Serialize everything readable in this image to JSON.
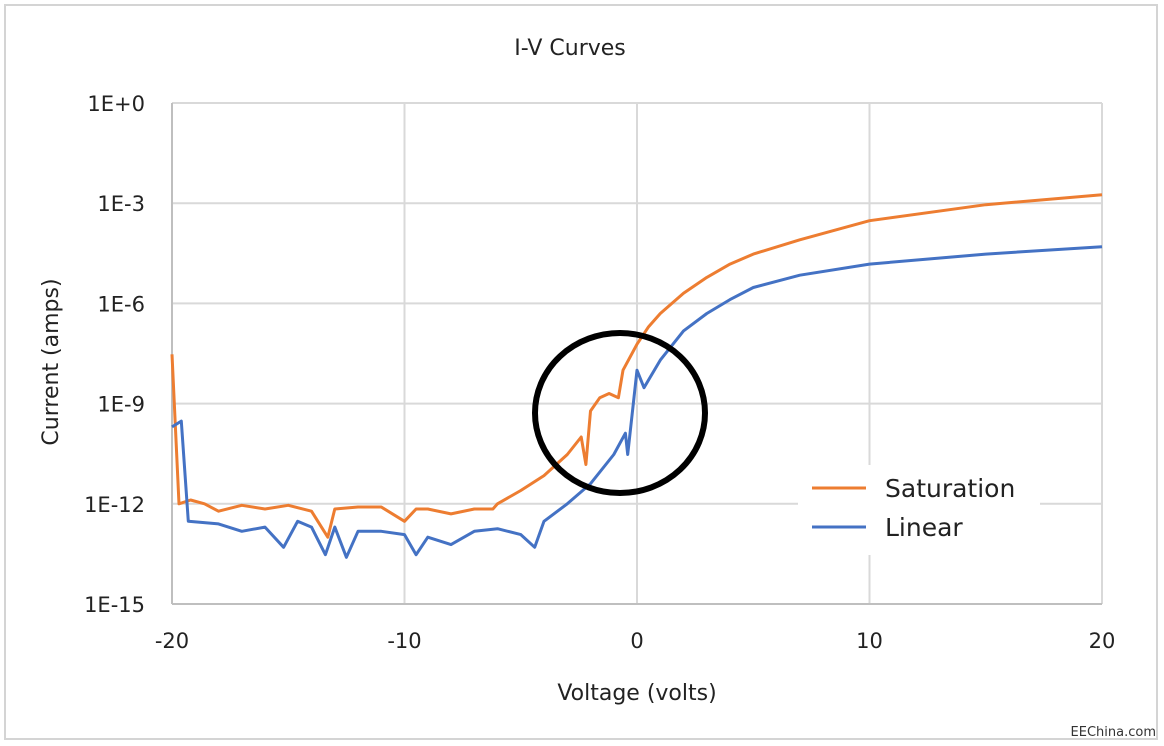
{
  "chart_data": {
    "type": "line",
    "title": "I-V Curves",
    "xlabel": "Voltage (volts)",
    "ylabel": "Current (amps)",
    "xlim": [
      -20,
      20
    ],
    "ylim": [
      1e-15,
      1
    ],
    "yscale": "log",
    "grid": true,
    "legend_position": "lower-right",
    "x_ticks": [
      "-20",
      "-10",
      "0",
      "10",
      "20"
    ],
    "y_ticks": [
      "1E+0",
      "1E-3",
      "1E-6",
      "1E-9",
      "1E-12",
      "1E-15"
    ],
    "annotation": "black circle around the turn-on region near 0 V",
    "series": [
      {
        "name": "Saturation",
        "color": "#ED7D31",
        "points": [
          [
            -20,
            3e-08
          ],
          [
            -19.7,
            1e-12
          ],
          [
            -19.2,
            1.3e-12
          ],
          [
            -18.6,
            1e-12
          ],
          [
            -18,
            6e-13
          ],
          [
            -17,
            9e-13
          ],
          [
            -16,
            7e-13
          ],
          [
            -15,
            9e-13
          ],
          [
            -14,
            6e-13
          ],
          [
            -13.3,
            1e-13
          ],
          [
            -13,
            7e-13
          ],
          [
            -12,
            8e-13
          ],
          [
            -11,
            8e-13
          ],
          [
            -10,
            3e-13
          ],
          [
            -9.5,
            7e-13
          ],
          [
            -9,
            7e-13
          ],
          [
            -8,
            5e-13
          ],
          [
            -7,
            7e-13
          ],
          [
            -6.2,
            7e-13
          ],
          [
            -6,
            1e-12
          ],
          [
            -5,
            2.5e-12
          ],
          [
            -4,
            7e-12
          ],
          [
            -3,
            3e-11
          ],
          [
            -2.4,
            1e-10
          ],
          [
            -2.2,
            1.5e-11
          ],
          [
            -2,
            6e-10
          ],
          [
            -1.6,
            1.5e-09
          ],
          [
            -1.2,
            2e-09
          ],
          [
            -0.8,
            1.5e-09
          ],
          [
            -0.6,
            1e-08
          ],
          [
            0,
            6e-08
          ],
          [
            0.5,
            2e-07
          ],
          [
            1,
            5e-07
          ],
          [
            2,
            2e-06
          ],
          [
            3,
            6e-06
          ],
          [
            4,
            1.5e-05
          ],
          [
            5,
            3e-05
          ],
          [
            7,
            8e-05
          ],
          [
            10,
            0.0003
          ],
          [
            15,
            0.0009
          ],
          [
            20,
            0.0018
          ]
        ]
      },
      {
        "name": "Linear",
        "color": "#4472C4",
        "points": [
          [
            -20,
            2e-10
          ],
          [
            -19.6,
            3e-10
          ],
          [
            -19.3,
            3e-13
          ],
          [
            -18,
            2.5e-13
          ],
          [
            -17,
            1.5e-13
          ],
          [
            -16,
            2e-13
          ],
          [
            -15.2,
            5e-14
          ],
          [
            -14.6,
            3e-13
          ],
          [
            -14,
            2e-13
          ],
          [
            -13.4,
            3e-14
          ],
          [
            -13,
            2e-13
          ],
          [
            -12.5,
            2.5e-14
          ],
          [
            -12,
            1.5e-13
          ],
          [
            -11,
            1.5e-13
          ],
          [
            -10,
            1.2e-13
          ],
          [
            -9.5,
            3e-14
          ],
          [
            -9,
            1e-13
          ],
          [
            -8,
            6e-14
          ],
          [
            -7,
            1.5e-13
          ],
          [
            -6,
            1.8e-13
          ],
          [
            -5,
            1.2e-13
          ],
          [
            -4.4,
            5e-14
          ],
          [
            -4,
            3e-13
          ],
          [
            -3,
            1e-12
          ],
          [
            -2,
            4e-12
          ],
          [
            -1,
            3e-11
          ],
          [
            -0.5,
            1.3e-10
          ],
          [
            -0.4,
            3e-11
          ],
          [
            0,
            1e-08
          ],
          [
            0.3,
            3e-09
          ],
          [
            1,
            2e-08
          ],
          [
            2,
            1.5e-07
          ],
          [
            3,
            5e-07
          ],
          [
            4,
            1.3e-06
          ],
          [
            5,
            3e-06
          ],
          [
            7,
            7e-06
          ],
          [
            10,
            1.5e-05
          ],
          [
            15,
            3e-05
          ],
          [
            20,
            5e-05
          ]
        ]
      }
    ]
  },
  "watermark": "EEChina.com"
}
